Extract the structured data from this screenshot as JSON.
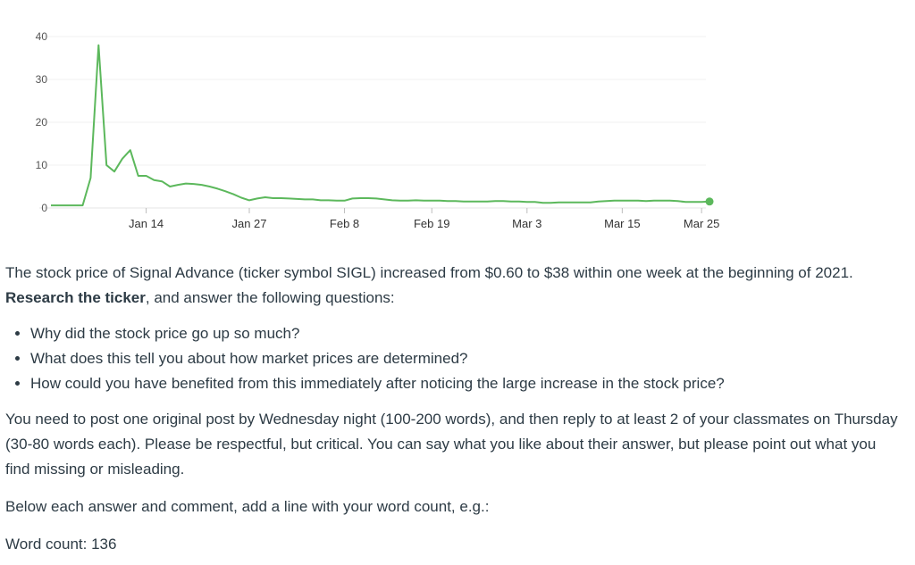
{
  "chart_data": {
    "type": "line",
    "color": "#5cb85c",
    "ylim": [
      0,
      40
    ],
    "yticks": [
      0,
      10,
      20,
      30,
      40
    ],
    "xtick_labels": [
      "Jan 14",
      "Jan 27",
      "Feb 8",
      "Feb 19",
      "Mar 3",
      "Mar 15",
      "Mar 25"
    ],
    "xtick_days": [
      13,
      26,
      38,
      49,
      61,
      73,
      83
    ],
    "series": [
      {
        "days": [
          1,
          2,
          3,
          4,
          5,
          6,
          7,
          8,
          9,
          10,
          11,
          12,
          13,
          14,
          15,
          16,
          17,
          18,
          19,
          20,
          21,
          22,
          23,
          24,
          25,
          26,
          27,
          28,
          29,
          30,
          31,
          32,
          33,
          34,
          35,
          36,
          37,
          38,
          39,
          40,
          41,
          42,
          43,
          44,
          45,
          46,
          47,
          48,
          49,
          50,
          51,
          52,
          53,
          54,
          55,
          56,
          57,
          58,
          59,
          60,
          61,
          62,
          63,
          64,
          65,
          66,
          67,
          68,
          69,
          70,
          71,
          72,
          73,
          74,
          75,
          76,
          77,
          78,
          79,
          80,
          81,
          82,
          83,
          84
        ],
        "values": [
          0.6,
          0.6,
          0.6,
          0.6,
          0.6,
          7,
          38,
          10,
          8.5,
          11.5,
          13.5,
          7.5,
          7.5,
          6.5,
          6.2,
          5,
          5.4,
          5.7,
          5.6,
          5.4,
          5,
          4.5,
          3.9,
          3.2,
          2.4,
          1.8,
          2.2,
          2.5,
          2.3,
          2.3,
          2.2,
          2.1,
          2.0,
          2.0,
          1.8,
          1.8,
          1.7,
          1.7,
          2.2,
          2.3,
          2.3,
          2.2,
          2.0,
          1.8,
          1.7,
          1.7,
          1.8,
          1.7,
          1.7,
          1.7,
          1.6,
          1.6,
          1.5,
          1.5,
          1.5,
          1.5,
          1.6,
          1.6,
          1.5,
          1.5,
          1.4,
          1.4,
          1.2,
          1.2,
          1.3,
          1.3,
          1.3,
          1.3,
          1.3,
          1.5,
          1.6,
          1.7,
          1.7,
          1.7,
          1.7,
          1.6,
          1.7,
          1.7,
          1.7,
          1.6,
          1.4,
          1.4,
          1.4,
          1.5
        ]
      }
    ]
  },
  "text": {
    "para1_before": "The stock price of Signal Advance (ticker symbol SIGL) increased from $0.60 to $38 within one week at the beginning of 2021. ",
    "para1_bold": "Research the ticker",
    "para1_after": ", and answer the following questions:",
    "questions": [
      "Why did the stock price go up so much?",
      "What does this tell you about how market prices are determined?",
      "How could you have benefited from this immediately after noticing the large increase in the stock price?"
    ],
    "para3": "You need to post one original post by Wednesday night (100-200 words), and then reply to at least 2 of your classmates on Thursday (30-80 words each). Please be respectful, but critical. You can say what you like about their answer, but please point out what you find missing or misleading.",
    "para4": "Below each answer and comment, add a line with your word count, e.g.:",
    "para5": "Word count: 136"
  }
}
